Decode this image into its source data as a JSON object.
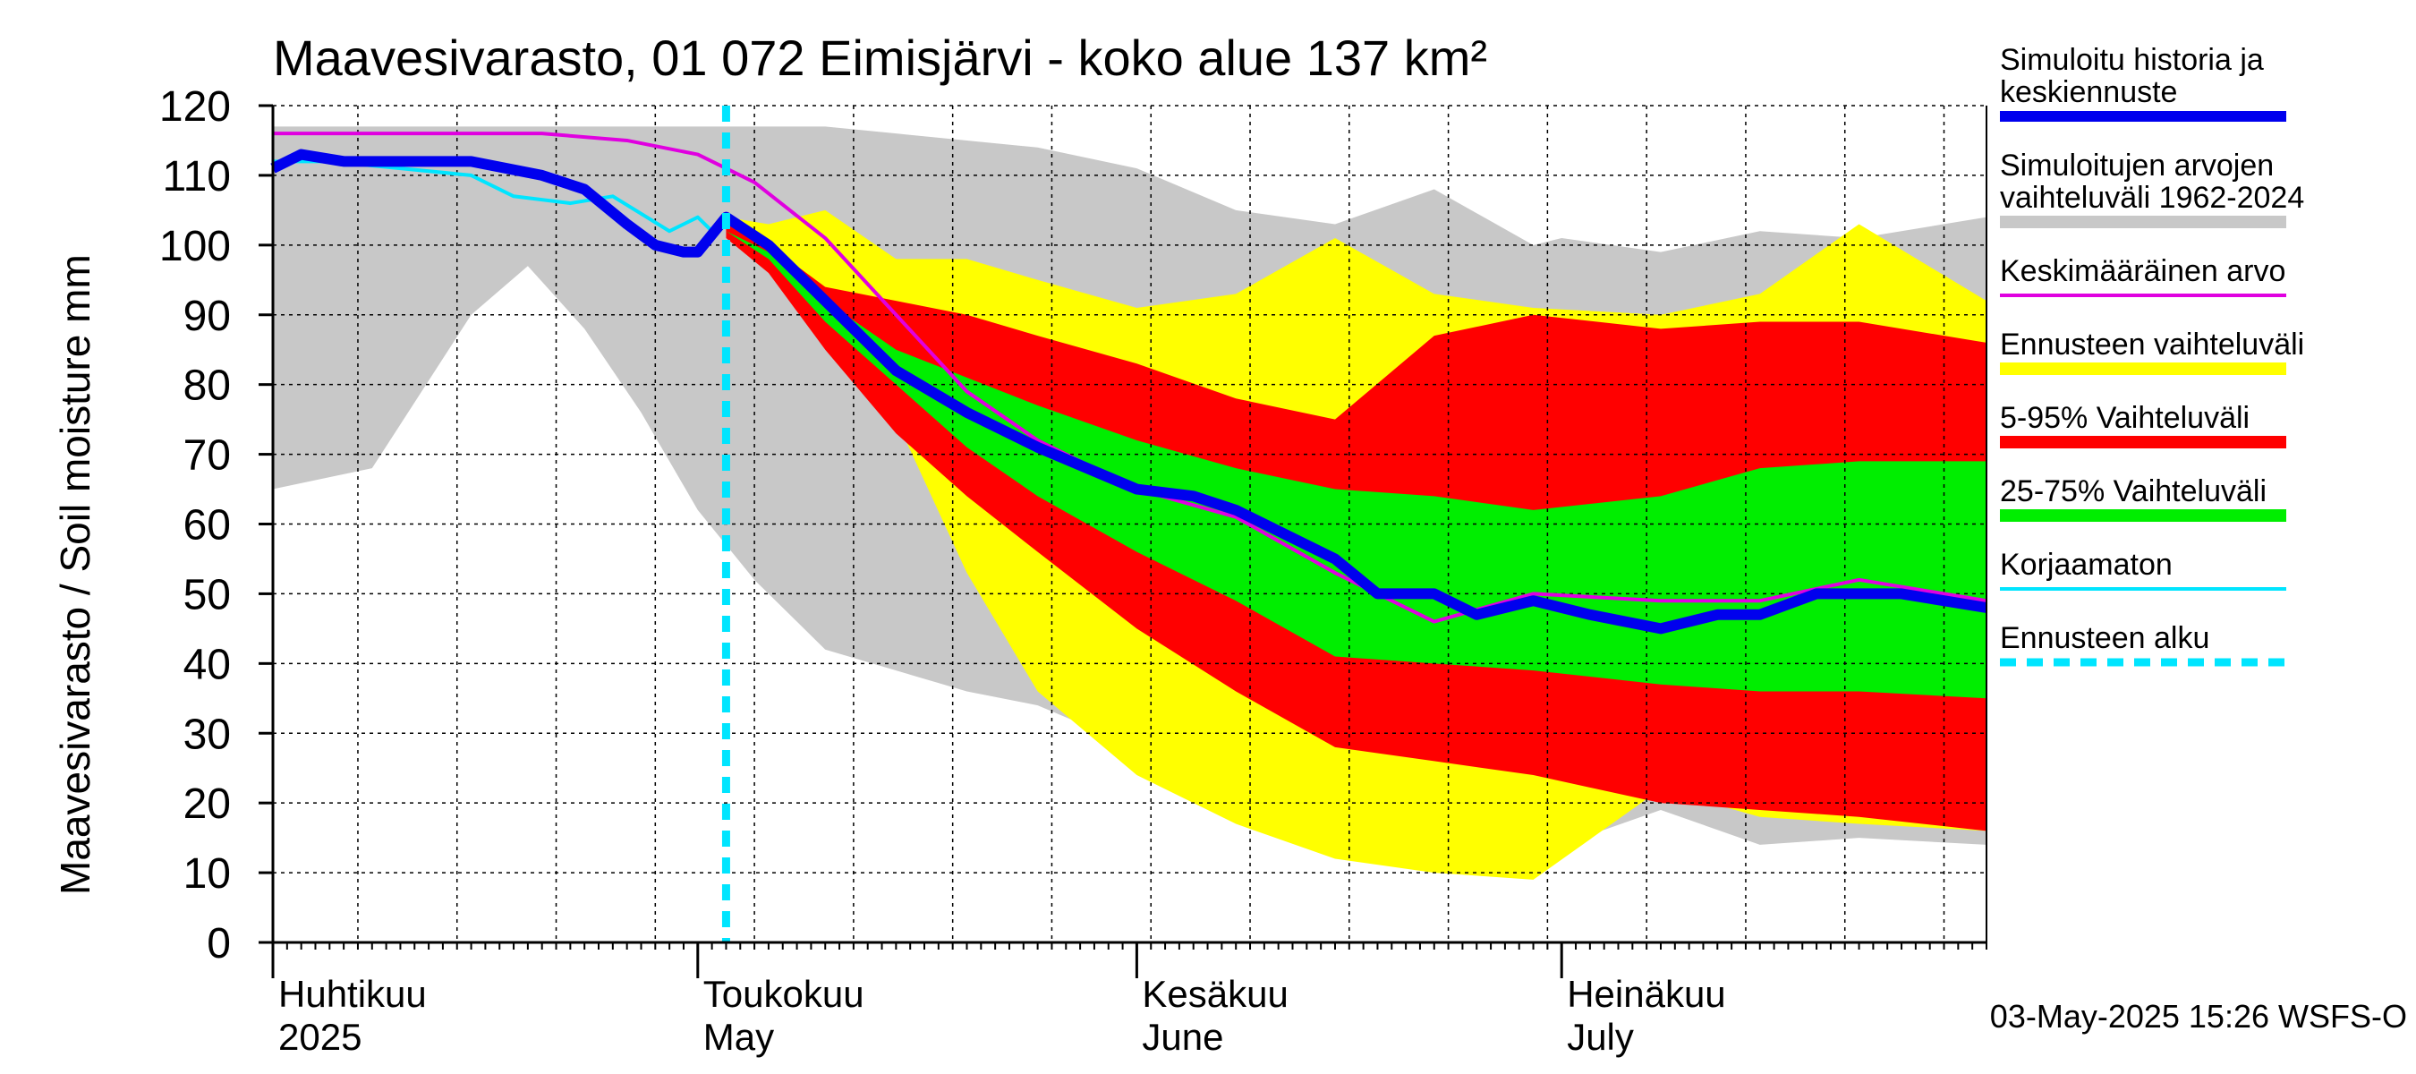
{
  "chart_data": {
    "type": "area",
    "title": "Maavesivarasto, 01 072 Eimisjärvi - koko alue 137 km²",
    "ylabel": "Maavesivarasto / Soil moisture   mm",
    "ylim": [
      0,
      120
    ],
    "yticks": [
      0,
      10,
      20,
      30,
      40,
      50,
      60,
      70,
      80,
      90,
      100,
      110,
      120
    ],
    "x_range": [
      "2025-04-01",
      "2025-07-31"
    ],
    "forecast_start": "2025-05-03",
    "month_labels": [
      {
        "fi": "Huhtikuu",
        "en": "2025",
        "date": "2025-04-01"
      },
      {
        "fi": "Toukokuu",
        "en": "May",
        "date": "2025-05-01"
      },
      {
        "fi": "Kesäkuu",
        "en": "June",
        "date": "2025-06-01"
      },
      {
        "fi": "Heinäkuu",
        "en": "July",
        "date": "2025-07-01"
      }
    ],
    "timestamp": "03-May-2025 15:26 WSFS-O",
    "legend": [
      {
        "key": "sim",
        "label": [
          "Simuloitu historia ja",
          "keskiennuste"
        ],
        "color": "#0000ee",
        "style": "thick"
      },
      {
        "key": "hist_range",
        "label": [
          "Simuloitujen arvojen",
          "vaihteluväli 1962-2024"
        ],
        "color": "#c8c8c8",
        "style": "band"
      },
      {
        "key": "mean",
        "label": [
          "Keskimääräinen arvo"
        ],
        "color": "#e000e0",
        "style": "line"
      },
      {
        "key": "forecast_range",
        "label": [
          "Ennusteen vaihteluväli"
        ],
        "color": "#ffff00",
        "style": "band"
      },
      {
        "key": "p5_95",
        "label": [
          "5-95% Vaihteluväli"
        ],
        "color": "#ff0000",
        "style": "band"
      },
      {
        "key": "p25_75",
        "label": [
          "25-75% Vaihteluväli"
        ],
        "color": "#00ee00",
        "style": "band"
      },
      {
        "key": "uncorrected",
        "label": [
          "Korjaamaton"
        ],
        "color": "#00e5ff",
        "style": "line"
      },
      {
        "key": "forecast_start",
        "label": [
          "Ennusteen alku"
        ],
        "color": "#00e5ff",
        "style": "dashed"
      }
    ],
    "series": {
      "hist_range": {
        "x": [
          "2025-04-01",
          "2025-04-08",
          "2025-04-15",
          "2025-04-19",
          "2025-04-23",
          "2025-04-27",
          "2025-05-01",
          "2025-05-05",
          "2025-05-10",
          "2025-05-15",
          "2025-05-20",
          "2025-05-25",
          "2025-06-01",
          "2025-06-08",
          "2025-06-15",
          "2025-06-22",
          "2025-06-29",
          "2025-07-01",
          "2025-07-08",
          "2025-07-15",
          "2025-07-22",
          "2025-07-31"
        ],
        "upper": [
          117,
          117,
          117,
          117,
          117,
          117,
          117,
          117,
          117,
          116,
          115,
          114,
          111,
          105,
          103,
          108,
          100,
          101,
          99,
          102,
          101,
          104
        ],
        "lower": [
          65,
          68,
          90,
          97,
          88,
          76,
          62,
          52,
          42,
          39,
          36,
          34,
          28,
          22,
          17,
          14,
          12,
          14,
          19,
          14,
          15,
          14
        ]
      },
      "forecast_range": {
        "x": [
          "2025-05-03",
          "2025-05-06",
          "2025-05-10",
          "2025-05-15",
          "2025-05-20",
          "2025-05-25",
          "2025-06-01",
          "2025-06-08",
          "2025-06-15",
          "2025-06-22",
          "2025-06-29",
          "2025-07-08",
          "2025-07-15",
          "2025-07-22",
          "2025-07-31"
        ],
        "upper": [
          104,
          103,
          105,
          98,
          98,
          95,
          91,
          93,
          101,
          93,
          91,
          90,
          93,
          103,
          92
        ],
        "lower": [
          102,
          98,
          88,
          75,
          53,
          36,
          24,
          17,
          12,
          10,
          9,
          22,
          18,
          17,
          16
        ]
      },
      "p5_95": {
        "x": [
          "2025-05-03",
          "2025-05-06",
          "2025-05-10",
          "2025-05-15",
          "2025-05-20",
          "2025-05-25",
          "2025-06-01",
          "2025-06-08",
          "2025-06-15",
          "2025-06-22",
          "2025-06-29",
          "2025-07-08",
          "2025-07-15",
          "2025-07-22",
          "2025-07-31"
        ],
        "upper": [
          103,
          100,
          94,
          92,
          90,
          87,
          83,
          78,
          75,
          87,
          90,
          88,
          89,
          89,
          86
        ],
        "lower": [
          101,
          96,
          85,
          73,
          64,
          56,
          45,
          36,
          28,
          26,
          24,
          20,
          19,
          18,
          16
        ]
      },
      "p25_75": {
        "x": [
          "2025-05-03",
          "2025-05-06",
          "2025-05-10",
          "2025-05-15",
          "2025-05-20",
          "2025-05-25",
          "2025-06-01",
          "2025-06-08",
          "2025-06-15",
          "2025-06-22",
          "2025-06-29",
          "2025-07-08",
          "2025-07-15",
          "2025-07-22",
          "2025-07-31"
        ],
        "upper": [
          102,
          99,
          92,
          85,
          81,
          77,
          72,
          68,
          65,
          64,
          62,
          64,
          68,
          69,
          69
        ],
        "lower": [
          102,
          98,
          89,
          80,
          71,
          64,
          56,
          49,
          41,
          40,
          39,
          37,
          36,
          36,
          35
        ]
      },
      "sim": {
        "x": [
          "2025-04-01",
          "2025-04-03",
          "2025-04-06",
          "2025-04-10",
          "2025-04-15",
          "2025-04-20",
          "2025-04-23",
          "2025-04-26",
          "2025-04-28",
          "2025-04-30",
          "2025-05-01",
          "2025-05-03",
          "2025-05-06",
          "2025-05-10",
          "2025-05-15",
          "2025-05-20",
          "2025-05-25",
          "2025-06-01",
          "2025-06-05",
          "2025-06-08",
          "2025-06-12",
          "2025-06-15",
          "2025-06-18",
          "2025-06-22",
          "2025-06-25",
          "2025-06-29",
          "2025-07-03",
          "2025-07-08",
          "2025-07-12",
          "2025-07-15",
          "2025-07-19",
          "2025-07-22",
          "2025-07-25",
          "2025-07-31"
        ],
        "values": [
          111,
          113,
          112,
          112,
          112,
          110,
          108,
          103,
          100,
          99,
          99,
          104,
          100,
          92,
          82,
          76,
          71,
          65,
          64,
          62,
          58,
          55,
          50,
          50,
          47,
          49,
          47,
          45,
          47,
          47,
          50,
          50,
          50,
          48
        ]
      },
      "mean": {
        "x": [
          "2025-04-01",
          "2025-04-10",
          "2025-04-20",
          "2025-04-26",
          "2025-05-01",
          "2025-05-05",
          "2025-05-10",
          "2025-05-15",
          "2025-05-20",
          "2025-05-25",
          "2025-06-01",
          "2025-06-08",
          "2025-06-15",
          "2025-06-22",
          "2025-06-29",
          "2025-07-08",
          "2025-07-15",
          "2025-07-22",
          "2025-07-31"
        ],
        "values": [
          116,
          116,
          116,
          115,
          113,
          109,
          101,
          90,
          79,
          72,
          65,
          61,
          53,
          46,
          50,
          49,
          49,
          52,
          49
        ]
      },
      "uncorrected": {
        "x": [
          "2025-04-01",
          "2025-04-05",
          "2025-04-10",
          "2025-04-15",
          "2025-04-18",
          "2025-04-22",
          "2025-04-25",
          "2025-04-29",
          "2025-05-01",
          "2025-05-02",
          "2025-05-03"
        ],
        "values": [
          112,
          112,
          111,
          110,
          107,
          106,
          107,
          102,
          104,
          102,
          104
        ]
      }
    }
  }
}
